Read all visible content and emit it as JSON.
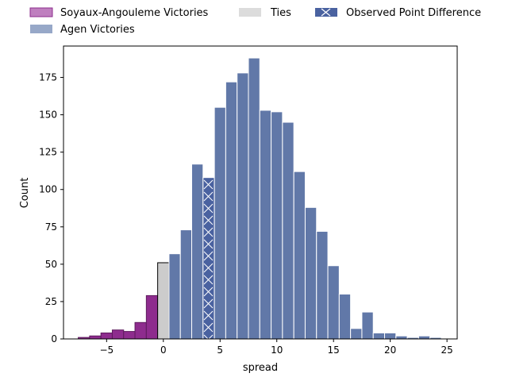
{
  "chart_data": {
    "type": "bar",
    "xlabel": "spread",
    "ylabel": "Count",
    "xlim": [
      -8.8,
      25.9
    ],
    "ylim": [
      0,
      196
    ],
    "x_ticks": [
      -5,
      0,
      5,
      10,
      15,
      20,
      25
    ],
    "y_ticks": [
      0,
      25,
      50,
      75,
      100,
      125,
      150,
      175
    ],
    "bin_width": 1,
    "legend": {
      "placement": "top",
      "entries": [
        {
          "key": "soyaux",
          "label": "Soyaux-Angouleme Victories"
        },
        {
          "key": "agen",
          "label": "Agen Victories"
        },
        {
          "key": "ties",
          "label": "Ties"
        },
        {
          "key": "observed",
          "label": "Observed Point Difference"
        }
      ]
    },
    "colors": {
      "soyaux": "#8e2c8e",
      "soyaux_legend": "#bf7fbf",
      "agen": "#6178a8",
      "agen_legend": "#97a8c8",
      "ties": "#cccccc",
      "ties_legend": "#dcdcdc",
      "observed": "#4a62a0"
    },
    "series": [
      {
        "key": "soyaux",
        "bins": [
          {
            "x": -7,
            "count": 1
          },
          {
            "x": -6,
            "count": 2
          },
          {
            "x": -5,
            "count": 4
          },
          {
            "x": -4,
            "count": 6
          },
          {
            "x": -3,
            "count": 5
          },
          {
            "x": -2,
            "count": 11
          },
          {
            "x": -1,
            "count": 29
          }
        ]
      },
      {
        "key": "ties",
        "bins": [
          {
            "x": 0,
            "count": 51
          }
        ]
      },
      {
        "key": "agen",
        "bins": [
          {
            "x": 1,
            "count": 57
          },
          {
            "x": 2,
            "count": 73
          },
          {
            "x": 3,
            "count": 117
          },
          {
            "x": 4,
            "count": 108
          },
          {
            "x": 5,
            "count": 155
          },
          {
            "x": 6,
            "count": 172
          },
          {
            "x": 7,
            "count": 178
          },
          {
            "x": 8,
            "count": 188
          },
          {
            "x": 9,
            "count": 153
          },
          {
            "x": 10,
            "count": 152
          },
          {
            "x": 11,
            "count": 145
          },
          {
            "x": 12,
            "count": 112
          },
          {
            "x": 13,
            "count": 88
          },
          {
            "x": 14,
            "count": 72
          },
          {
            "x": 15,
            "count": 49
          },
          {
            "x": 16,
            "count": 30
          },
          {
            "x": 17,
            "count": 7
          },
          {
            "x": 18,
            "count": 18
          },
          {
            "x": 19,
            "count": 4
          },
          {
            "x": 20,
            "count": 4
          },
          {
            "x": 21,
            "count": 2
          },
          {
            "x": 22,
            "count": 1
          },
          {
            "x": 23,
            "count": 2
          },
          {
            "x": 24,
            "count": 1
          }
        ]
      }
    ],
    "observed_bin": {
      "x": 4,
      "count": 108
    }
  }
}
